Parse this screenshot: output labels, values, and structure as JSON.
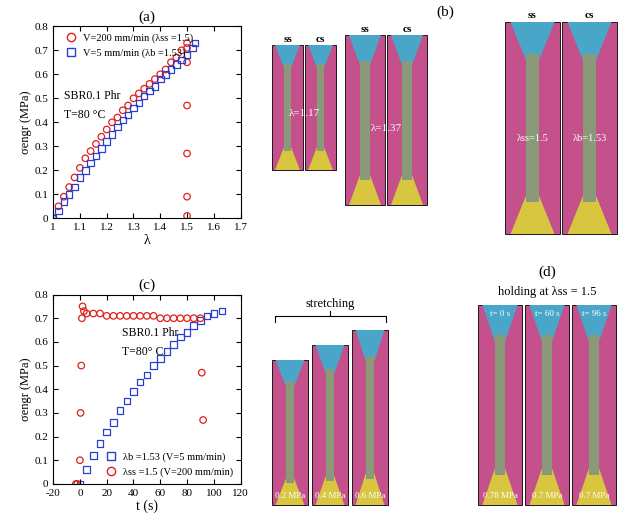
{
  "chart_data": [
    {
      "type": "scatter",
      "title": "(a)",
      "x_label": "λ",
      "y_label": "σengr (MPa)",
      "xlim": [
        1,
        1.7
      ],
      "xticks": [
        1,
        1.1,
        1.2,
        1.3,
        1.4,
        1.5,
        1.6,
        1.7
      ],
      "ylim": [
        0,
        0.8
      ],
      "yticks": [
        0,
        0.1,
        0.2,
        0.3,
        0.4,
        0.5,
        0.6,
        0.7,
        0.8
      ],
      "legend": "upper left",
      "annotations": [
        "SBR0.1 Phr",
        "T=80 °C"
      ],
      "series": [
        {
          "name": "V=200 mm/min (λss =1.5)",
          "color": "#e0201b",
          "marker": "circle",
          "x": [
            1.0,
            1.02,
            1.04,
            1.06,
            1.08,
            1.1,
            1.12,
            1.14,
            1.16,
            1.18,
            1.2,
            1.22,
            1.24,
            1.26,
            1.28,
            1.3,
            1.32,
            1.34,
            1.36,
            1.38,
            1.4,
            1.42,
            1.44,
            1.46,
            1.48,
            1.5,
            1.5,
            1.5,
            1.5,
            1.5,
            1.5,
            1.5
          ],
          "values": [
            0.0,
            0.05,
            0.09,
            0.13,
            0.17,
            0.21,
            0.25,
            0.28,
            0.31,
            0.34,
            0.37,
            0.4,
            0.42,
            0.45,
            0.47,
            0.5,
            0.52,
            0.54,
            0.56,
            0.58,
            0.6,
            0.62,
            0.65,
            0.67,
            0.7,
            0.73,
            0.71,
            0.65,
            0.47,
            0.27,
            0.09,
            0.01
          ]
        },
        {
          "name": "V=5 mm/min (λb =1.53)",
          "color": "#2a3fd1",
          "marker": "square",
          "x": [
            1.0,
            1.02,
            1.04,
            1.06,
            1.08,
            1.1,
            1.12,
            1.14,
            1.16,
            1.18,
            1.2,
            1.22,
            1.24,
            1.26,
            1.28,
            1.3,
            1.32,
            1.34,
            1.36,
            1.38,
            1.4,
            1.42,
            1.44,
            1.46,
            1.48,
            1.5,
            1.52,
            1.53
          ],
          "values": [
            0.0,
            0.03,
            0.07,
            0.1,
            0.13,
            0.17,
            0.2,
            0.23,
            0.26,
            0.29,
            0.32,
            0.35,
            0.38,
            0.41,
            0.43,
            0.46,
            0.48,
            0.51,
            0.53,
            0.55,
            0.58,
            0.6,
            0.62,
            0.64,
            0.66,
            0.68,
            0.71,
            0.73
          ]
        }
      ]
    },
    {
      "type": "scatter",
      "title": "(c)",
      "x_label": "t (s)",
      "y_label": "σengr (MPa)",
      "xlim": [
        -20,
        120
      ],
      "xticks": [
        -20,
        0,
        20,
        40,
        60,
        80,
        100,
        120
      ],
      "ylim": [
        0,
        0.8
      ],
      "yticks": [
        0,
        0.1,
        0.2,
        0.3,
        0.4,
        0.5,
        0.6,
        0.7,
        0.8
      ],
      "legend": "lower right",
      "annotations": [
        "SBR0.1 Phr",
        "T=80° C"
      ],
      "series": [
        {
          "name": "λb =1.53 (V=5 mm/min)",
          "color": "#2a3fd1",
          "marker": "square",
          "x": [
            0,
            5,
            10,
            15,
            20,
            25,
            30,
            35,
            40,
            45,
            50,
            55,
            60,
            65,
            70,
            75,
            80,
            85,
            90,
            95,
            100,
            106
          ],
          "values": [
            0.0,
            0.06,
            0.12,
            0.17,
            0.22,
            0.26,
            0.31,
            0.35,
            0.39,
            0.43,
            0.46,
            0.5,
            0.53,
            0.56,
            0.59,
            0.62,
            0.64,
            0.67,
            0.69,
            0.71,
            0.72,
            0.73
          ]
        },
        {
          "name": "λss =1.5 (V=200 mm/min)",
          "color": "#e0201b",
          "marker": "circle",
          "x": [
            -3,
            -2,
            0,
            0.5,
            1,
            1.5,
            2,
            3,
            5,
            10,
            15,
            20,
            25,
            30,
            35,
            40,
            45,
            50,
            55,
            60,
            65,
            70,
            75,
            80,
            85,
            90,
            91,
            92
          ],
          "values": [
            0.0,
            0.0,
            0.1,
            0.3,
            0.5,
            0.7,
            0.75,
            0.73,
            0.72,
            0.72,
            0.72,
            0.71,
            0.71,
            0.71,
            0.71,
            0.71,
            0.71,
            0.71,
            0.71,
            0.7,
            0.7,
            0.7,
            0.7,
            0.7,
            0.7,
            0.7,
            0.47,
            0.27
          ]
        }
      ]
    }
  ],
  "photos": {
    "b": {
      "title": "(b)",
      "groups": [
        {
          "top": [
            "ss",
            "cs"
          ],
          "labels": [
            "λ=1.17"
          ]
        },
        {
          "top": [
            "ss",
            "cs"
          ],
          "labels": [
            "λ=1.37"
          ]
        },
        {
          "top": [
            "ss",
            "cs"
          ],
          "labels": [
            "λss=1.5",
            "λb=1.53"
          ]
        }
      ]
    },
    "d": {
      "title": "(d)",
      "stretching": {
        "title": "stretching",
        "labels": [
          "0.2 MPa",
          "0.4 MPa",
          "0.6 MPa"
        ]
      },
      "holding": {
        "title": "holding at λss = 1.5",
        "times": [
          "t= 0 s",
          "t= 60 s",
          "t= 96 s"
        ],
        "labels": [
          "0.78 MPa",
          "0.7 MPa",
          "0.7 MPa"
        ]
      }
    }
  }
}
